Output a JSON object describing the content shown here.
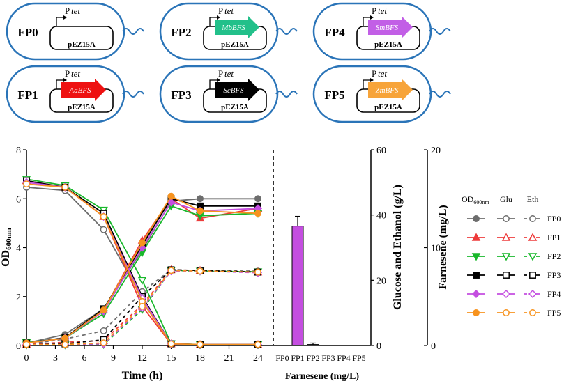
{
  "strains": [
    {
      "name": "FP0",
      "plasmid": "pEZ15A",
      "gene": "",
      "color": ""
    },
    {
      "name": "FP1",
      "plasmid": "pEZ15A",
      "gene": "AaBFS",
      "color": "#ee1111"
    },
    {
      "name": "FP2",
      "plasmid": "pEZ15A",
      "gene": "MbBFS",
      "color": "#22c08a"
    },
    {
      "name": "FP3",
      "plasmid": "pEZ15A",
      "gene": "ScBFS",
      "color": "#000000"
    },
    {
      "name": "FP4",
      "plasmid": "pEZ15A",
      "gene": "SmBFS",
      "color": "#c25fe6"
    },
    {
      "name": "FP5",
      "plasmid": "pEZ15A",
      "gene": "ZmBFS",
      "color": "#f7a43a"
    }
  ],
  "promoter": {
    "p": "P",
    "tet": "tet"
  },
  "chart_data": {
    "type": "line",
    "title": "",
    "xlabel": "Time (h)",
    "x": [
      0,
      4,
      8,
      12,
      15,
      18,
      24
    ],
    "xticks": [
      "0",
      "3",
      "6",
      "9",
      "12",
      "15",
      "18",
      "21",
      "24"
    ],
    "xlim": [
      0,
      24
    ],
    "ylabel_main": "OD",
    "ylabel_sub": "600nm",
    "ylim": [
      0,
      8
    ],
    "yticks": [
      "0",
      "2",
      "4",
      "6",
      "8"
    ],
    "ylabel_right": "Glucose and Ethanol (g/L)",
    "ylim_right": [
      0,
      60
    ],
    "yticks_right": [
      "0",
      "20",
      "40",
      "60"
    ],
    "series": [
      {
        "name": "FP0",
        "color": "#6d6d6d",
        "od": [
          0.1,
          0.45,
          1.5,
          3.9,
          5.9,
          6.0,
          6.0
        ],
        "glu": [
          48.5,
          47.5,
          35.5,
          14.5,
          0.5,
          0.3,
          0.3
        ],
        "eth": [
          0.3,
          2.0,
          4.5,
          16.5,
          23.2,
          23.0,
          22.8
        ],
        "markers": [
          "circle-filled",
          "circle-open",
          "circle-open"
        ]
      },
      {
        "name": "FP1",
        "color": "#ee3b3b",
        "od": [
          0.1,
          0.3,
          1.45,
          4.3,
          6.0,
          5.2,
          5.6
        ],
        "glu": [
          50.5,
          48.5,
          39.5,
          12.0,
          0.5,
          0.3,
          0.3
        ],
        "eth": [
          0.3,
          1.0,
          1.5,
          12.5,
          23.2,
          23.0,
          22.5
        ],
        "markers": [
          "triangle-filled",
          "triangle-open",
          "triangle-open"
        ]
      },
      {
        "name": "FP2",
        "color": "#18b82b",
        "od": [
          0.12,
          0.3,
          1.3,
          3.8,
          5.7,
          5.3,
          5.4
        ],
        "glu": [
          51.0,
          49.0,
          41.5,
          20.0,
          0.6,
          0.3,
          0.3
        ],
        "eth": [
          0.2,
          0.2,
          0.3,
          11.0,
          23.0,
          22.8,
          22.6
        ],
        "markers": [
          "tri-down-filled",
          "tri-down-open",
          "tri-down-open"
        ]
      },
      {
        "name": "FP3",
        "color": "#000000",
        "od": [
          0.1,
          0.32,
          1.5,
          4.1,
          6.0,
          5.7,
          5.7
        ],
        "glu": [
          50.5,
          48.5,
          40.5,
          15.0,
          0.5,
          0.3,
          0.3
        ],
        "eth": [
          0.3,
          0.5,
          1.8,
          15.0,
          23.2,
          23.0,
          22.5
        ],
        "markers": [
          "square-filled",
          "square-open",
          "square-open"
        ]
      },
      {
        "name": "FP4",
        "color": "#c44ee0",
        "od": [
          0.1,
          0.3,
          1.4,
          4.0,
          5.85,
          5.5,
          5.6
        ],
        "glu": [
          50.0,
          48.5,
          39.5,
          14.5,
          0.5,
          0.3,
          0.3
        ],
        "eth": [
          0.3,
          0.3,
          0.5,
          11.5,
          22.8,
          22.8,
          22.3
        ],
        "markers": [
          "diamond-filled",
          "diamond-open",
          "diamond-open"
        ]
      },
      {
        "name": "FP5",
        "color": "#f7931e",
        "od": [
          0.1,
          0.3,
          1.45,
          4.2,
          6.1,
          5.5,
          5.4
        ],
        "glu": [
          49.5,
          48.5,
          39.5,
          13.5,
          0.5,
          0.3,
          0.3
        ],
        "eth": [
          0.3,
          0.3,
          0.8,
          12.0,
          23.0,
          22.8,
          22.5
        ],
        "markers": [
          "circle-filled",
          "circle-open",
          "circle-open"
        ]
      }
    ],
    "bar": {
      "type": "bar",
      "xlabel": "Farnesene (mg/L)",
      "ylabel": "Farnesene (mg/L)",
      "ylim": [
        0,
        20
      ],
      "yticks": [
        "0",
        "10",
        "20"
      ],
      "categories": [
        "FP0",
        "FP1",
        "FP2",
        "FP3",
        "FP4",
        "FP5"
      ],
      "values": [
        0,
        12.2,
        0.1,
        0,
        0,
        0
      ],
      "errors": [
        0,
        1.0,
        0.15,
        0,
        0,
        0
      ],
      "color": "#c44ee0"
    },
    "legend": {
      "headers": [
        "OD",
        "Glu",
        "Eth"
      ],
      "od_sub": "600nm",
      "position": "right"
    }
  }
}
